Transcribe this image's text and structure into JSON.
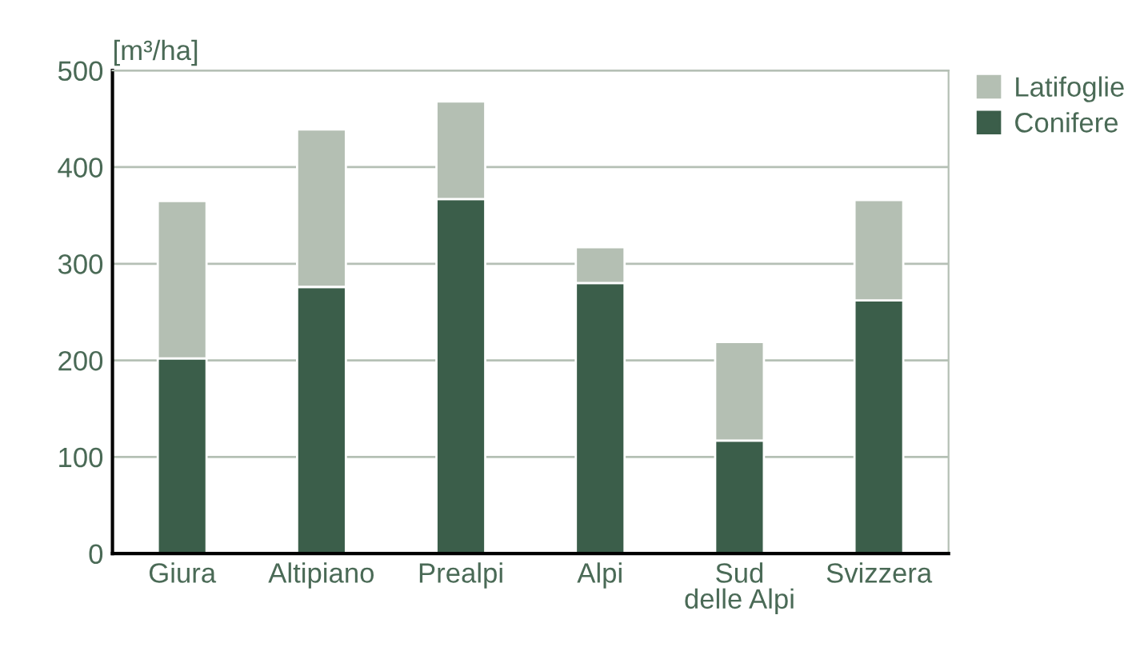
{
  "chart_data": {
    "type": "bar",
    "stacked": true,
    "ylabel": "[m³/ha]",
    "categories": [
      "Giura",
      "Altipiano",
      "Prealpi",
      "Alpi",
      "Sud\ndelle Alpi",
      "Svizzera"
    ],
    "series": [
      {
        "name": "Conifere",
        "color": "#3b5e4a",
        "values": [
          202,
          276,
          367,
          280,
          117,
          262
        ]
      },
      {
        "name": "Latifoglie",
        "color": "#b4bfb3",
        "values": [
          163,
          163,
          101,
          37,
          102,
          104
        ]
      }
    ],
    "ylim": [
      0,
      500
    ],
    "yticks": [
      0,
      100,
      200,
      300,
      400,
      500
    ],
    "grid": "y",
    "legend": "top right"
  }
}
